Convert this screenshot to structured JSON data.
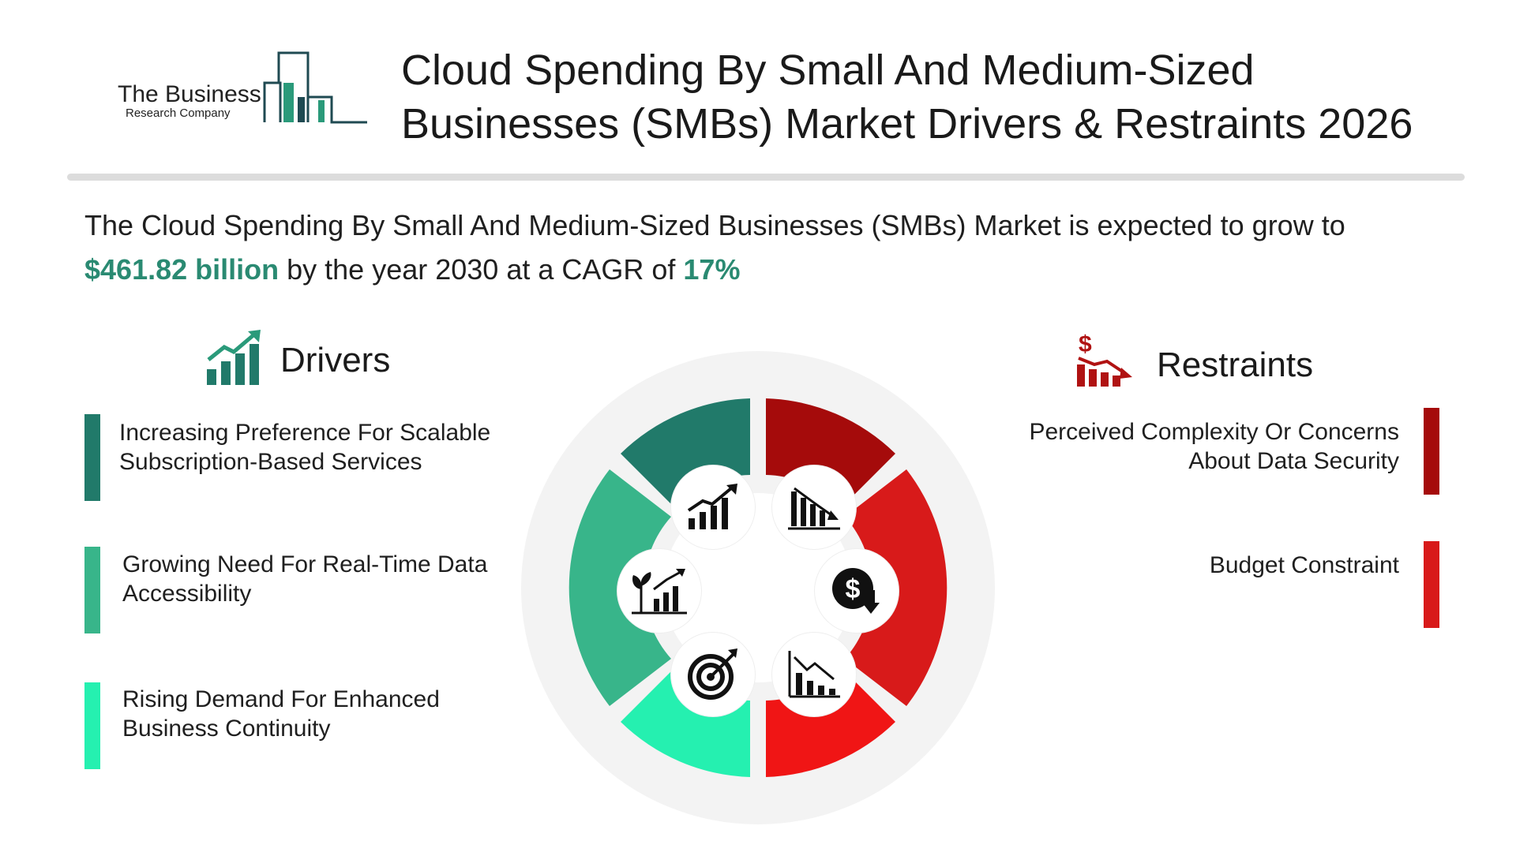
{
  "header": {
    "logo_name": "The Business",
    "logo_sub": "Research Company",
    "title_line1": "Cloud Spending By Small And Medium-Sized",
    "title_line2": "Businesses (SMBs) Market Drivers & Restraints 2026"
  },
  "summary": {
    "lead": "The Cloud Spending By Small And Medium-Sized Businesses (SMBs) Market is expected to grow to",
    "value": "$461.82 billion",
    "mid": " by the year 2030 at a CAGR of ",
    "cagr": "17%"
  },
  "drivers": {
    "title": "Drivers",
    "items": [
      {
        "line1": "Increasing Preference For Scalable",
        "line2": "Subscription-Based Services"
      },
      {
        "line1": "Growing Need For Real-Time Data",
        "line2": "Accessibility"
      },
      {
        "line1": "Rising Demand For Enhanced",
        "line2": "Business Continuity"
      }
    ]
  },
  "restraints": {
    "title": "Restraints",
    "items": [
      {
        "line1": "Perceived Complexity Or Concerns",
        "line2": "About Data Security"
      },
      {
        "line1": "Budget Constraint",
        "line2": ""
      }
    ]
  },
  "wheel_icons": [
    "growth-chart-icon",
    "declining-chart-icon",
    "dollar-down-icon",
    "line-chart-down-icon",
    "target-icon",
    "plant-growth-icon"
  ],
  "colors": {
    "teal_dark": "#217a6a",
    "teal_mid": "#38b58a",
    "teal_light": "#25f0b0",
    "red_dark": "#a50b0b",
    "red_mid": "#d81a1a",
    "red_light": "#f01515",
    "accent": "#2a8a72"
  }
}
